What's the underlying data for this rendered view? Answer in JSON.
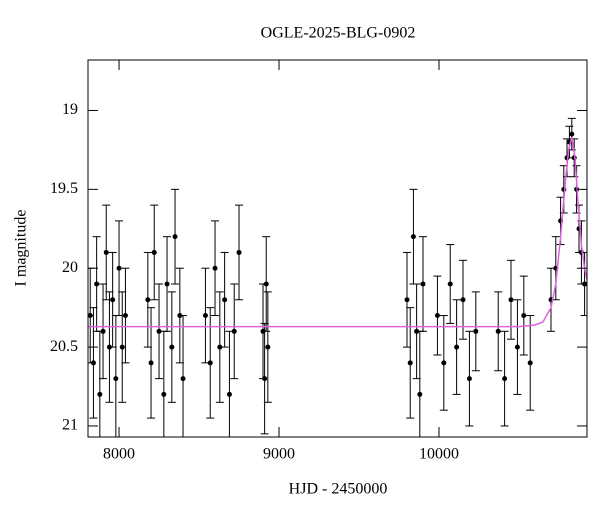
{
  "chart_data": {
    "type": "scatter",
    "title": "OGLE-2025-BLG-0902",
    "x_label": "HJD - 2450000",
    "y_label": "I magnitude",
    "xlim": [
      7806,
      10925
    ],
    "ylim": [
      18.68,
      21.07
    ],
    "y_inverted": true,
    "xticks": [
      8000,
      9000,
      10000
    ],
    "yticks": [
      19,
      19.5,
      20,
      20.5,
      21
    ],
    "color": "#000000",
    "x": [
      7820,
      7840,
      7860,
      7880,
      7900,
      7920,
      7940,
      7960,
      7980,
      8000,
      8020,
      8040,
      8180,
      8200,
      8220,
      8250,
      8280,
      8300,
      8330,
      8350,
      8380,
      8400,
      8540,
      8570,
      8600,
      8630,
      8660,
      8690,
      8720,
      8750,
      8900,
      8910,
      8920,
      8930,
      9800,
      9820,
      9840,
      9860,
      9880,
      9900,
      9990,
      10030,
      10070,
      10110,
      10150,
      10190,
      10230,
      10370,
      10410,
      10450,
      10490,
      10530,
      10570,
      10700,
      10730,
      10760,
      10780,
      10800,
      10815,
      10830,
      10845,
      10860,
      10875,
      10890,
      10910
    ],
    "values": [
      20.3,
      20.6,
      20.1,
      20.8,
      20.4,
      19.9,
      20.5,
      20.2,
      20.7,
      20.0,
      20.5,
      20.3,
      20.2,
      20.6,
      19.9,
      20.4,
      20.8,
      20.1,
      20.5,
      19.8,
      20.3,
      20.7,
      20.3,
      20.6,
      20.0,
      20.5,
      20.2,
      20.8,
      20.4,
      19.9,
      20.4,
      20.7,
      20.1,
      20.5,
      20.2,
      20.6,
      19.8,
      20.4,
      20.8,
      20.1,
      20.3,
      20.6,
      20.1,
      20.5,
      20.2,
      20.7,
      20.4,
      20.4,
      20.7,
      20.2,
      20.5,
      20.3,
      20.6,
      20.2,
      20.0,
      19.7,
      19.5,
      19.3,
      19.2,
      19.15,
      19.3,
      19.5,
      19.75,
      19.9,
      20.1
    ],
    "errors": [
      0.3,
      0.35,
      0.3,
      0.4,
      0.3,
      0.3,
      0.35,
      0.3,
      0.4,
      0.3,
      0.35,
      0.3,
      0.3,
      0.35,
      0.3,
      0.3,
      0.4,
      0.3,
      0.35,
      0.3,
      0.3,
      0.4,
      0.3,
      0.35,
      0.3,
      0.35,
      0.3,
      0.4,
      0.3,
      0.3,
      0.3,
      0.35,
      0.3,
      0.35,
      0.3,
      0.35,
      0.3,
      0.3,
      0.4,
      0.3,
      0.25,
      0.3,
      0.25,
      0.3,
      0.25,
      0.3,
      0.25,
      0.25,
      0.3,
      0.25,
      0.3,
      0.25,
      0.3,
      0.2,
      0.2,
      0.15,
      0.15,
      0.12,
      0.1,
      0.1,
      0.12,
      0.15,
      0.15,
      0.2,
      0.2
    ],
    "model": {
      "color": "#e060e0",
      "x": [
        7806,
        10500,
        10600,
        10650,
        10700,
        10730,
        10760,
        10790,
        10810,
        10830,
        10850,
        10870,
        10890,
        10910,
        10925
      ],
      "values": [
        20.37,
        20.37,
        20.36,
        20.34,
        20.25,
        20.1,
        19.8,
        19.45,
        19.25,
        19.17,
        19.3,
        19.6,
        19.85,
        20.0,
        20.07
      ]
    }
  }
}
